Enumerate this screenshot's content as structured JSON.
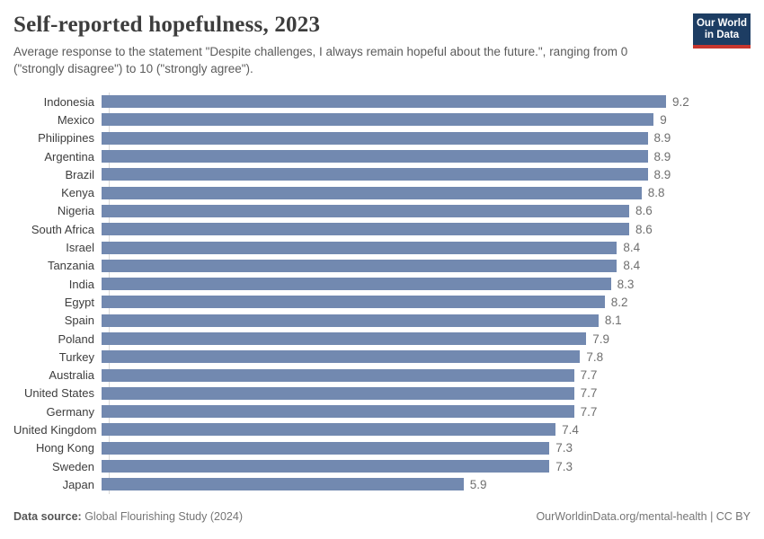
{
  "header": {
    "title": "Self-reported hopefulness, 2023",
    "subtitle": "Average response to the statement \"Despite challenges, I always remain hopeful about the future.\", ranging from 0 (\"strongly disagree\") to 10 (\"strongly agree\").",
    "logo": {
      "line1": "Our World",
      "line2": "in Data",
      "bg_color": "#1d3d63",
      "accent_color": "#c7362e"
    }
  },
  "chart_data": {
    "type": "bar",
    "orientation": "horizontal",
    "title": "Self-reported hopefulness, 2023",
    "xlabel": "",
    "ylabel": "",
    "xlim": [
      0,
      9.2
    ],
    "grid": false,
    "legend": false,
    "bar_color": "#7289b0",
    "categories": [
      "Indonesia",
      "Mexico",
      "Philippines",
      "Argentina",
      "Brazil",
      "Kenya",
      "Nigeria",
      "South Africa",
      "Israel",
      "Tanzania",
      "India",
      "Egypt",
      "Spain",
      "Poland",
      "Turkey",
      "Australia",
      "United States",
      "Germany",
      "United Kingdom",
      "Hong Kong",
      "Sweden",
      "Japan"
    ],
    "values": [
      9.2,
      9,
      8.9,
      8.9,
      8.9,
      8.8,
      8.6,
      8.6,
      8.4,
      8.4,
      8.3,
      8.2,
      8.1,
      7.9,
      7.8,
      7.7,
      7.7,
      7.7,
      7.4,
      7.3,
      7.3,
      5.9
    ],
    "value_labels": [
      "9.2",
      "9",
      "8.9",
      "8.9",
      "8.9",
      "8.8",
      "8.6",
      "8.6",
      "8.4",
      "8.4",
      "8.3",
      "8.2",
      "8.1",
      "7.9",
      "7.8",
      "7.7",
      "7.7",
      "7.7",
      "7.4",
      "7.3",
      "7.3",
      "5.9"
    ]
  },
  "footer": {
    "source_label": "Data source:",
    "source_text": " Global Flourishing Study (2024)",
    "credit": "OurWorldinData.org/mental-health | CC BY"
  }
}
